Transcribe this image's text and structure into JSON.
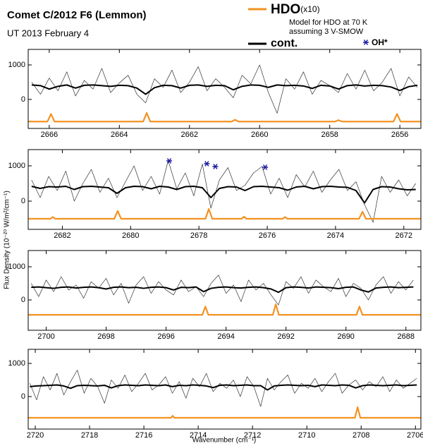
{
  "header": {
    "title": "Comet C/2012 F6 (Lemmon)",
    "subtitle": "UT 2013 February 4"
  },
  "legend": [
    {
      "name": "HDO",
      "suffix": "(x10)",
      "color": "#f39222",
      "notes": [
        "Model for HDO at 70 K",
        "assuming 3 V-SMOW"
      ]
    },
    {
      "name": "cont.",
      "color": "#000000"
    },
    {
      "name": "OH*",
      "color": "#1a1aa0"
    }
  ],
  "y_label": "Flux Density (10⁻²⁰ W/m²/cm⁻¹)",
  "x_label": "Wavenumber (cm⁻¹)",
  "chart_data": [
    {
      "type": "line",
      "xlim": [
        2666.6,
        2655.4
      ],
      "ylim": [
        -840,
        1450
      ],
      "xticks": [
        2666,
        2664,
        2662,
        2660,
        2658,
        2656
      ],
      "yticks": [
        0,
        1000
      ],
      "x": [
        2666.5,
        2666.25,
        2666.0,
        2665.75,
        2665.5,
        2665.25,
        2665.0,
        2664.75,
        2664.5,
        2664.25,
        2664.0,
        2663.75,
        2663.5,
        2663.25,
        2663.0,
        2662.75,
        2662.5,
        2662.25,
        2662.0,
        2661.75,
        2661.5,
        2661.25,
        2661.0,
        2660.75,
        2660.5,
        2660.25,
        2660.0,
        2659.75,
        2659.5,
        2659.25,
        2659.0,
        2658.75,
        2658.5,
        2658.25,
        2658.0,
        2657.75,
        2657.5,
        2657.25,
        2657.0,
        2656.75,
        2656.5,
        2656.25,
        2656.0,
        2655.75,
        2655.5
      ],
      "series": [
        {
          "color": "#333333",
          "values": [
            500,
            150,
            620,
            250,
            800,
            100,
            550,
            300,
            900,
            200,
            480,
            700,
            150,
            -100,
            600,
            350,
            850,
            200,
            500,
            950,
            250,
            600,
            350,
            50,
            700,
            450,
            1000,
            200,
            -400,
            600,
            300,
            800,
            150,
            550,
            400,
            200,
            750,
            300,
            850,
            250,
            500,
            900,
            100,
            650,
            350
          ]
        },
        {
          "color": "#000000",
          "values": [
            420,
            400,
            300,
            380,
            420,
            330,
            410,
            420,
            400,
            380,
            410,
            400,
            330,
            150,
            340,
            410,
            400,
            330,
            410,
            420,
            380,
            410,
            400,
            280,
            380,
            420,
            410,
            350,
            420,
            400,
            410,
            390,
            320,
            410,
            390,
            300,
            400,
            420,
            390,
            410,
            400,
            360,
            260,
            370,
            410
          ]
        },
        {
          "color": "#f39222",
          "x": [
            2666.6,
            2666.05,
            2665.95,
            2665.85,
            2663.32,
            2663.22,
            2663.12,
            2660.8,
            2660.7,
            2660.6,
            2657.85,
            2657.75,
            2657.65,
            2656.18,
            2656.08,
            2655.98,
            2655.4
          ],
          "values": [
            -640,
            -640,
            -420,
            -640,
            -640,
            -390,
            -640,
            -640,
            -590,
            -640,
            -640,
            -600,
            -640,
            -640,
            -420,
            -640,
            -640
          ]
        }
      ]
    },
    {
      "type": "line",
      "xlim": [
        2683.0,
        2671.5
      ],
      "ylim": [
        -800,
        1460
      ],
      "xticks": [
        2682,
        2680,
        2678,
        2676,
        2674,
        2672
      ],
      "yticks": [
        0,
        1000
      ],
      "x": [
        2682.9,
        2682.65,
        2682.4,
        2682.15,
        2681.9,
        2681.65,
        2681.4,
        2681.15,
        2680.9,
        2680.65,
        2680.4,
        2680.15,
        2679.9,
        2679.65,
        2679.4,
        2679.15,
        2678.9,
        2678.65,
        2678.4,
        2678.15,
        2677.9,
        2677.65,
        2677.4,
        2677.15,
        2676.9,
        2676.65,
        2676.4,
        2676.15,
        2675.9,
        2675.65,
        2675.4,
        2675.15,
        2674.9,
        2674.65,
        2674.4,
        2674.15,
        2673.9,
        2673.65,
        2673.4,
        2673.15,
        2672.9,
        2672.65,
        2672.4,
        2672.15,
        2671.9,
        2671.65
      ],
      "series": [
        {
          "color": "#333333",
          "values": [
            600,
            100,
            700,
            300,
            850,
            0,
            500,
            900,
            250,
            650,
            100,
            550,
            1000,
            300,
            700,
            200,
            1150,
            350,
            800,
            150,
            1050,
            -200,
            600,
            950,
            300,
            450,
            800,
            980,
            200,
            650,
            100,
            750,
            400,
            850,
            250,
            600,
            900,
            300,
            550,
            -100,
            -600,
            700,
            250,
            600,
            150,
            500
          ]
        },
        {
          "color": "#000000",
          "values": [
            420,
            360,
            410,
            400,
            420,
            330,
            410,
            420,
            400,
            380,
            220,
            380,
            420,
            410,
            350,
            420,
            400,
            330,
            410,
            420,
            380,
            100,
            360,
            410,
            400,
            300,
            410,
            420,
            400,
            380,
            310,
            400,
            420,
            350,
            410,
            420,
            400,
            390,
            300,
            -50,
            330,
            410,
            400,
            350,
            320,
            330
          ]
        },
        {
          "color": "#f39222",
          "x": [
            2683.0,
            2682.35,
            2682.28,
            2682.21,
            2680.48,
            2680.38,
            2680.28,
            2677.81,
            2677.71,
            2677.61,
            2676.75,
            2676.68,
            2676.61,
            2675.55,
            2675.48,
            2675.41,
            2673.31,
            2673.21,
            2673.11,
            2671.5
          ],
          "values": [
            -500,
            -500,
            -450,
            -500,
            -500,
            -280,
            -500,
            -500,
            -220,
            -500,
            -500,
            -440,
            -500,
            -500,
            -450,
            -500,
            -500,
            -300,
            -500,
            -500
          ]
        },
        {
          "color": "#1a1aa0",
          "marker": "asterisk",
          "x": [
            2678.87,
            2677.77,
            2677.52,
            2676.06
          ],
          "values": [
            1140,
            1060,
            980,
            960
          ]
        }
      ]
    },
    {
      "type": "line",
      "xlim": [
        2700.6,
        2687.5
      ],
      "ylim": [
        -915,
        1490
      ],
      "xticks": [
        2700,
        2698,
        2696,
        2694,
        2692,
        2690,
        2688
      ],
      "yticks": [
        0,
        1000
      ],
      "x": [
        2700.5,
        2700.25,
        2700.0,
        2699.75,
        2699.5,
        2699.25,
        2699.0,
        2698.75,
        2698.5,
        2698.25,
        2698.0,
        2697.75,
        2697.5,
        2697.25,
        2697.0,
        2696.75,
        2696.5,
        2696.25,
        2696.0,
        2695.75,
        2695.5,
        2695.25,
        2695.0,
        2694.75,
        2694.5,
        2694.25,
        2694.0,
        2693.75,
        2693.5,
        2693.25,
        2693.0,
        2692.75,
        2692.5,
        2692.25,
        2692.0,
        2691.75,
        2691.5,
        2691.25,
        2691.0,
        2690.75,
        2690.5,
        2690.25,
        2690.0,
        2689.75,
        2689.5,
        2689.25,
        2689.0,
        2688.75,
        2688.5,
        2688.25,
        2688.0,
        2687.75
      ],
      "series": [
        {
          "color": "#333333",
          "values": [
            500,
            100,
            600,
            250,
            700,
            300,
            450,
            50,
            550,
            350,
            650,
            150,
            500,
            -100,
            450,
            700,
            200,
            550,
            300,
            150,
            600,
            250,
            400,
            100,
            500,
            750,
            200,
            450,
            -50,
            600,
            300,
            500,
            150,
            -150,
            550,
            350,
            700,
            200,
            600,
            400,
            250,
            650,
            100,
            500,
            350,
            0,
            450,
            700,
            200,
            550,
            300,
            600
          ]
        },
        {
          "color": "#000000",
          "values": [
            380,
            390,
            370,
            350,
            380,
            390,
            360,
            380,
            390,
            370,
            330,
            380,
            390,
            370,
            380,
            350,
            380,
            390,
            370,
            300,
            380,
            370,
            390,
            250,
            350,
            380,
            390,
            370,
            360,
            380,
            390,
            370,
            330,
            230,
            370,
            390,
            380,
            360,
            390,
            380,
            370,
            340,
            380,
            390,
            300,
            240,
            360,
            380,
            390,
            370,
            380,
            390
          ]
        },
        {
          "color": "#f39222",
          "x": [
            2700.6,
            2694.79,
            2694.69,
            2694.59,
            2692.44,
            2692.34,
            2692.24,
            2689.65,
            2689.55,
            2689.45,
            2687.5
          ],
          "values": [
            -450,
            -450,
            -200,
            -450,
            -450,
            -130,
            -450,
            -450,
            -200,
            -450,
            -450
          ]
        }
      ]
    },
    {
      "type": "line",
      "xlim": [
        2720.26,
        2705.8
      ],
      "ylim": [
        -980,
        1425
      ],
      "xticks": [
        2720,
        2718,
        2716,
        2714,
        2712,
        2710,
        2708,
        2706
      ],
      "yticks": [
        0,
        1000
      ],
      "x": [
        2720.2,
        2719.95,
        2719.7,
        2719.45,
        2719.2,
        2718.95,
        2718.7,
        2718.45,
        2718.2,
        2717.95,
        2717.7,
        2717.45,
        2717.2,
        2716.95,
        2716.7,
        2716.45,
        2716.2,
        2715.95,
        2715.7,
        2715.45,
        2715.2,
        2714.95,
        2714.7,
        2714.45,
        2714.2,
        2713.95,
        2713.7,
        2713.45,
        2713.2,
        2712.95,
        2712.7,
        2712.45,
        2712.2,
        2711.95,
        2711.7,
        2711.45,
        2711.2,
        2710.95,
        2710.7,
        2710.45,
        2710.2,
        2709.95,
        2709.7,
        2709.45,
        2709.2,
        2708.95,
        2708.7,
        2708.45,
        2708.2,
        2707.95,
        2707.7,
        2707.45,
        2707.2,
        2706.95,
        2706.7,
        2706.45,
        2706.2,
        2705.95
      ],
      "series": [
        {
          "color": "#333333",
          "values": [
            400,
            -100,
            600,
            200,
            700,
            50,
            450,
            800,
            100,
            550,
            300,
            -200,
            500,
            250,
            650,
            150,
            400,
            700,
            200,
            350,
            600,
            100,
            450,
            -50,
            550,
            300,
            700,
            150,
            400,
            250,
            500,
            0,
            600,
            300,
            -300,
            550,
            200,
            450,
            650,
            100,
            400,
            250,
            550,
            150,
            450,
            700,
            100,
            350,
            500,
            200,
            450,
            300,
            600,
            150,
            500,
            250,
            400,
            550
          ]
        },
        {
          "color": "#000000",
          "values": [
            300,
            320,
            330,
            340,
            350,
            320,
            250,
            330,
            340,
            330,
            320,
            340,
            260,
            330,
            350,
            340,
            330,
            350,
            340,
            330,
            350,
            300,
            340,
            330,
            350,
            340,
            320,
            270,
            340,
            350,
            330,
            340,
            350,
            330,
            330,
            200,
            320,
            340,
            350,
            340,
            330,
            340,
            300,
            350,
            340,
            330,
            350,
            340,
            260,
            330,
            350,
            340,
            330,
            340,
            350,
            330,
            340,
            350
          ]
        },
        {
          "color": "#f39222",
          "x": [
            2720.26,
            2715.0,
            2714.94,
            2714.88,
            2708.23,
            2708.13,
            2708.03,
            2705.8
          ],
          "values": [
            -640,
            -640,
            -580,
            -640,
            -640,
            -320,
            -640,
            -640
          ]
        }
      ]
    }
  ]
}
